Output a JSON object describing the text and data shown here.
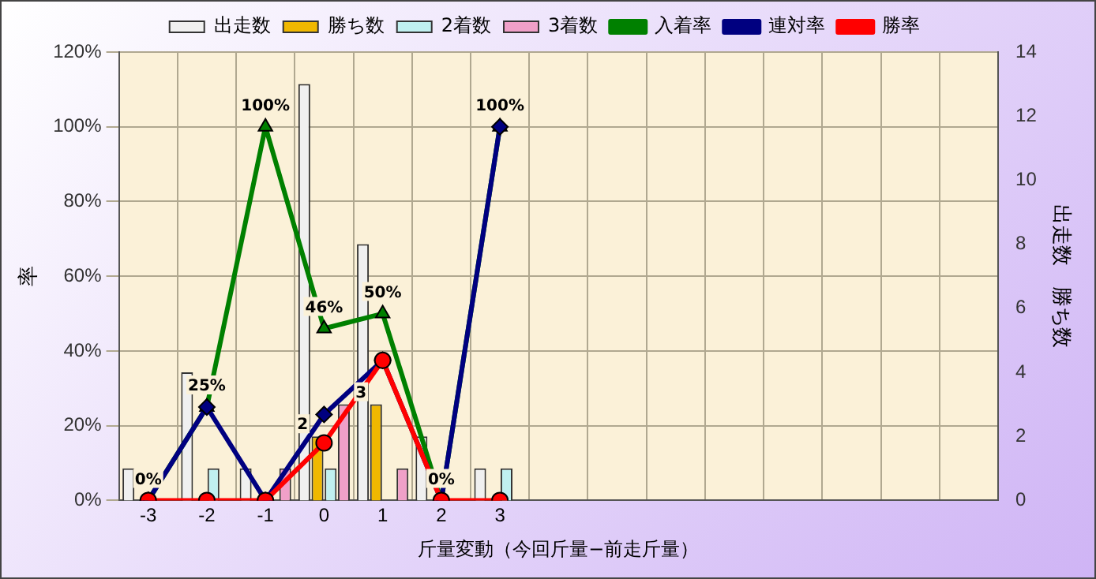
{
  "chart_data": {
    "type": "bar",
    "categories": [
      "-3",
      "-2",
      "-1",
      "0",
      "1",
      "2",
      "3",
      null,
      null,
      null,
      null,
      null,
      null,
      null,
      null
    ],
    "series": [
      {
        "name": "出走数",
        "axis": "y2",
        "color": "#f0f0f0",
        "values": [
          1,
          4,
          1,
          13,
          8,
          2,
          1,
          null,
          null,
          null,
          null,
          null,
          null,
          null,
          null
        ]
      },
      {
        "name": "勝ち数",
        "axis": "y2",
        "color": "#f0b800",
        "values": [
          0,
          0,
          0,
          2,
          3,
          0,
          0,
          null,
          null,
          null,
          null,
          null,
          null,
          null,
          null
        ],
        "value_labels": [
          null,
          null,
          null,
          "2",
          "3",
          null,
          null,
          null,
          null,
          null,
          null,
          null,
          null,
          null,
          null
        ]
      },
      {
        "name": "2着数",
        "axis": "y2",
        "color": "#c0f0f0",
        "values": [
          0,
          1,
          0,
          1,
          0,
          0,
          1,
          null,
          null,
          null,
          null,
          null,
          null,
          null,
          null
        ]
      },
      {
        "name": "3着数",
        "axis": "y2",
        "color": "#f0a0c8",
        "values": [
          0,
          0,
          1,
          3,
          1,
          0,
          0,
          null,
          null,
          null,
          null,
          null,
          null,
          null,
          null
        ]
      },
      {
        "name": "入着率",
        "type": "line",
        "marker": "triangle",
        "color": "#008000",
        "values": [
          0,
          25,
          100,
          46,
          50,
          0,
          100,
          null,
          null,
          null,
          null,
          null,
          null,
          null,
          null
        ],
        "value_labels": [
          "0%",
          "25%",
          "100%",
          "46%",
          "50%",
          "0%",
          "100%",
          null,
          null,
          null,
          null,
          null,
          null,
          null,
          null
        ]
      },
      {
        "name": "連対率",
        "type": "line",
        "marker": "diamond",
        "color": "#000080",
        "values": [
          0,
          25,
          0,
          23,
          37.5,
          0,
          100,
          null,
          null,
          null,
          null,
          null,
          null,
          null,
          null
        ]
      },
      {
        "name": "勝率",
        "type": "line",
        "marker": "circle",
        "color": "#ff0000",
        "values": [
          0,
          0,
          0,
          15.4,
          37.5,
          0,
          0,
          null,
          null,
          null,
          null,
          null,
          null,
          null,
          null
        ]
      }
    ],
    "xlabel": "斤量変動（今回斤量−前走斤量）",
    "ylabel": "率",
    "y2label": "出走数　勝ち数",
    "ylim": [
      0,
      120
    ],
    "yticks": [
      {
        "value": 0,
        "label": "0%"
      },
      {
        "value": 20,
        "label": "20%"
      },
      {
        "value": 40,
        "label": "40%"
      },
      {
        "value": 60,
        "label": "60%"
      },
      {
        "value": 80,
        "label": "80%"
      },
      {
        "value": 100,
        "label": "100%"
      },
      {
        "value": 120,
        "label": "120%"
      }
    ],
    "y2lim": [
      0,
      14
    ],
    "y2ticks": [
      0,
      2,
      4,
      6,
      8,
      10,
      12,
      14
    ],
    "grid": true,
    "legend": "top"
  }
}
